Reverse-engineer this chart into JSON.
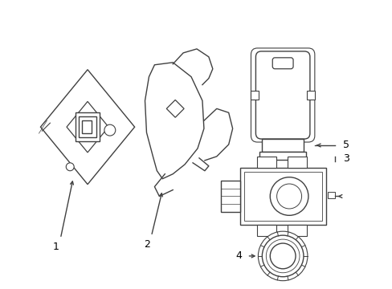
{
  "bg_color": "#ffffff",
  "line_color": "#404040",
  "line_width": 1.0,
  "fig_width": 4.89,
  "fig_height": 3.6,
  "dpi": 100
}
